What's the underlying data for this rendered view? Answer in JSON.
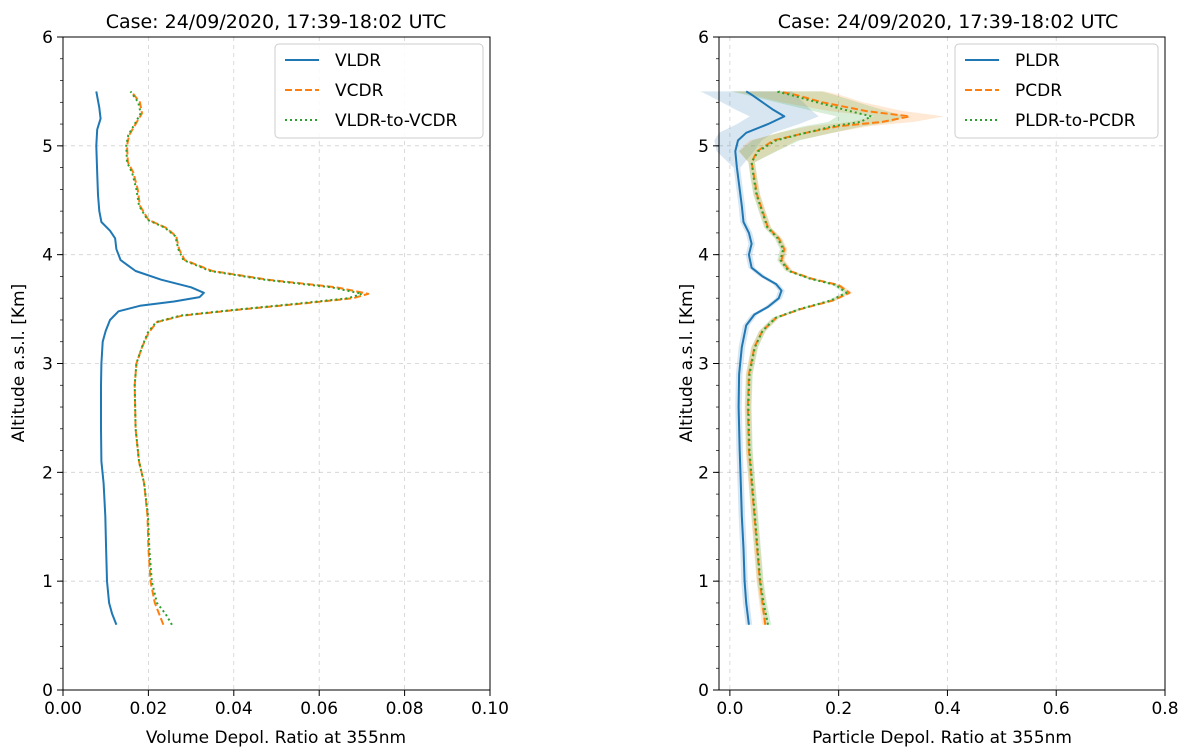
{
  "figure": {
    "background": "#ffffff"
  },
  "chart_data": [
    {
      "type": "line",
      "title": "Case: 24/09/2020, 17:39-18:02 UTC",
      "xlabel": "Volume Depol. Ratio at 355nm",
      "ylabel": "Altitude a.s.l. [Km]",
      "xlim": [
        0.0,
        0.1
      ],
      "ylim": [
        0,
        6
      ],
      "xticks": [
        0.0,
        0.02,
        0.04,
        0.06,
        0.08,
        0.1
      ],
      "xtick_labels": [
        "0.00",
        "0.02",
        "0.04",
        "0.06",
        "0.08",
        "0.10"
      ],
      "yticks": [
        0,
        1,
        2,
        3,
        4,
        5,
        6
      ],
      "ytick_labels": [
        "0",
        "1",
        "2",
        "3",
        "4",
        "5",
        "6"
      ],
      "grid": true,
      "legend_position": "top-right",
      "series": [
        {
          "name": "VLDR",
          "color": "#1f77b4",
          "style": "solid",
          "points": [
            [
              0.0125,
              0.6
            ],
            [
              0.0115,
              0.7
            ],
            [
              0.0108,
              0.8
            ],
            [
              0.0103,
              1.0
            ],
            [
              0.0101,
              1.3
            ],
            [
              0.0099,
              1.6
            ],
            [
              0.0095,
              1.9
            ],
            [
              0.009,
              2.1
            ],
            [
              0.0089,
              2.4
            ],
            [
              0.0089,
              2.8
            ],
            [
              0.009,
              3.0
            ],
            [
              0.0093,
              3.2
            ],
            [
              0.01,
              3.3
            ],
            [
              0.011,
              3.4
            ],
            [
              0.013,
              3.48
            ],
            [
              0.018,
              3.53
            ],
            [
              0.026,
              3.57
            ],
            [
              0.032,
              3.61
            ],
            [
              0.033,
              3.65
            ],
            [
              0.03,
              3.7
            ],
            [
              0.023,
              3.77
            ],
            [
              0.017,
              3.85
            ],
            [
              0.0135,
              3.95
            ],
            [
              0.0125,
              4.05
            ],
            [
              0.0122,
              4.15
            ],
            [
              0.011,
              4.22
            ],
            [
              0.009,
              4.3
            ],
            [
              0.0085,
              4.4
            ],
            [
              0.0082,
              4.55
            ],
            [
              0.008,
              4.75
            ],
            [
              0.0078,
              5.0
            ],
            [
              0.008,
              5.15
            ],
            [
              0.0088,
              5.25
            ],
            [
              0.0085,
              5.35
            ],
            [
              0.0078,
              5.5
            ]
          ]
        },
        {
          "name": "VCDR",
          "color": "#ff7f0e",
          "style": "dashed",
          "points": [
            [
              0.0235,
              0.6
            ],
            [
              0.0225,
              0.7
            ],
            [
              0.0215,
              0.8
            ],
            [
              0.0205,
              1.0
            ],
            [
              0.02,
              1.3
            ],
            [
              0.0198,
              1.6
            ],
            [
              0.019,
              1.9
            ],
            [
              0.0178,
              2.1
            ],
            [
              0.017,
              2.4
            ],
            [
              0.0168,
              2.8
            ],
            [
              0.0172,
              3.0
            ],
            [
              0.0185,
              3.15
            ],
            [
              0.02,
              3.28
            ],
            [
              0.022,
              3.38
            ],
            [
              0.028,
              3.44
            ],
            [
              0.04,
              3.49
            ],
            [
              0.056,
              3.55
            ],
            [
              0.068,
              3.6
            ],
            [
              0.0715,
              3.64
            ],
            [
              0.064,
              3.7
            ],
            [
              0.048,
              3.77
            ],
            [
              0.035,
              3.85
            ],
            [
              0.0285,
              3.95
            ],
            [
              0.0272,
              4.05
            ],
            [
              0.0265,
              4.17
            ],
            [
              0.024,
              4.25
            ],
            [
              0.02,
              4.32
            ],
            [
              0.018,
              4.45
            ],
            [
              0.0175,
              4.6
            ],
            [
              0.0165,
              4.75
            ],
            [
              0.0152,
              4.85
            ],
            [
              0.015,
              5.0
            ],
            [
              0.0155,
              5.1
            ],
            [
              0.017,
              5.2
            ],
            [
              0.0185,
              5.3
            ],
            [
              0.018,
              5.4
            ],
            [
              0.016,
              5.5
            ]
          ]
        },
        {
          "name": "VLDR-to-VCDR",
          "color": "#2ca02c",
          "style": "dotted",
          "points": [
            [
              0.0255,
              0.6
            ],
            [
              0.024,
              0.7
            ],
            [
              0.022,
              0.8
            ],
            [
              0.0208,
              1.0
            ],
            [
              0.0202,
              1.3
            ],
            [
              0.0199,
              1.6
            ],
            [
              0.019,
              1.9
            ],
            [
              0.0178,
              2.1
            ],
            [
              0.017,
              2.4
            ],
            [
              0.0168,
              2.8
            ],
            [
              0.0172,
              3.0
            ],
            [
              0.0185,
              3.15
            ],
            [
              0.0198,
              3.28
            ],
            [
              0.0218,
              3.38
            ],
            [
              0.0275,
              3.44
            ],
            [
              0.0392,
              3.49
            ],
            [
              0.055,
              3.55
            ],
            [
              0.0668,
              3.6
            ],
            [
              0.07,
              3.64
            ],
            [
              0.0628,
              3.7
            ],
            [
              0.0472,
              3.77
            ],
            [
              0.0345,
              3.85
            ],
            [
              0.0282,
              3.95
            ],
            [
              0.027,
              4.05
            ],
            [
              0.0263,
              4.17
            ],
            [
              0.0238,
              4.25
            ],
            [
              0.0198,
              4.32
            ],
            [
              0.0178,
              4.45
            ],
            [
              0.0172,
              4.6
            ],
            [
              0.0162,
              4.75
            ],
            [
              0.015,
              4.85
            ],
            [
              0.0148,
              5.0
            ],
            [
              0.0153,
              5.1
            ],
            [
              0.0168,
              5.2
            ],
            [
              0.0182,
              5.3
            ],
            [
              0.0176,
              5.4
            ],
            [
              0.0158,
              5.5
            ]
          ]
        }
      ]
    },
    {
      "type": "line",
      "title": "Case: 24/09/2020, 17:39-18:02 UTC",
      "xlabel": "Particle Depol. Ratio at 355nm",
      "ylabel": "Altitude a.s.l. [Km]",
      "xlim": [
        -0.02,
        0.8
      ],
      "ylim": [
        0,
        6
      ],
      "xticks": [
        0.0,
        0.2,
        0.4,
        0.6,
        0.8
      ],
      "xtick_labels": [
        "0.0",
        "0.2",
        "0.4",
        "0.6",
        "0.8"
      ],
      "yticks": [
        0,
        1,
        2,
        3,
        4,
        5,
        6
      ],
      "ytick_labels": [
        "0",
        "1",
        "2",
        "3",
        "4",
        "5",
        "6"
      ],
      "grid": true,
      "legend_position": "top-right",
      "series": [
        {
          "name": "PLDR",
          "color": "#1f77b4",
          "style": "solid",
          "points": [
            [
              0.035,
              0.6
            ],
            [
              0.03,
              0.8
            ],
            [
              0.027,
              1.0
            ],
            [
              0.025,
              1.3
            ],
            [
              0.022,
              1.6
            ],
            [
              0.02,
              1.9
            ],
            [
              0.018,
              2.2
            ],
            [
              0.016,
              2.6
            ],
            [
              0.017,
              2.9
            ],
            [
              0.022,
              3.15
            ],
            [
              0.03,
              3.35
            ],
            [
              0.045,
              3.45
            ],
            [
              0.07,
              3.52
            ],
            [
              0.09,
              3.6
            ],
            [
              0.095,
              3.67
            ],
            [
              0.085,
              3.73
            ],
            [
              0.06,
              3.8
            ],
            [
              0.04,
              3.88
            ],
            [
              0.035,
              4.0
            ],
            [
              0.04,
              4.1
            ],
            [
              0.035,
              4.2
            ],
            [
              0.025,
              4.3
            ],
            [
              0.022,
              4.45
            ],
            [
              0.018,
              4.6
            ],
            [
              0.013,
              4.8
            ],
            [
              0.01,
              4.95
            ],
            [
              0.015,
              5.05
            ],
            [
              0.03,
              5.12
            ],
            [
              0.07,
              5.2
            ],
            [
              0.1,
              5.27
            ],
            [
              0.08,
              5.33
            ],
            [
              0.06,
              5.4
            ],
            [
              0.04,
              5.47
            ],
            [
              0.03,
              5.5
            ]
          ]
        },
        {
          "name": "PCDR",
          "color": "#ff7f0e",
          "style": "dashed",
          "points": [
            [
              0.065,
              0.6
            ],
            [
              0.06,
              0.8
            ],
            [
              0.055,
              1.0
            ],
            [
              0.05,
              1.3
            ],
            [
              0.045,
              1.6
            ],
            [
              0.04,
              1.9
            ],
            [
              0.035,
              2.2
            ],
            [
              0.033,
              2.6
            ],
            [
              0.035,
              2.9
            ],
            [
              0.045,
              3.15
            ],
            [
              0.06,
              3.3
            ],
            [
              0.085,
              3.42
            ],
            [
              0.13,
              3.5
            ],
            [
              0.19,
              3.58
            ],
            [
              0.22,
              3.65
            ],
            [
              0.2,
              3.72
            ],
            [
              0.15,
              3.78
            ],
            [
              0.11,
              3.85
            ],
            [
              0.095,
              3.95
            ],
            [
              0.1,
              4.05
            ],
            [
              0.09,
              4.15
            ],
            [
              0.07,
              4.25
            ],
            [
              0.06,
              4.4
            ],
            [
              0.05,
              4.55
            ],
            [
              0.045,
              4.7
            ],
            [
              0.04,
              4.85
            ],
            [
              0.05,
              4.95
            ],
            [
              0.08,
              5.05
            ],
            [
              0.14,
              5.12
            ],
            [
              0.2,
              5.18
            ],
            [
              0.28,
              5.22
            ],
            [
              0.33,
              5.27
            ],
            [
              0.25,
              5.32
            ],
            [
              0.17,
              5.4
            ],
            [
              0.12,
              5.47
            ],
            [
              0.09,
              5.5
            ]
          ]
        },
        {
          "name": "PLDR-to-PCDR",
          "color": "#2ca02c",
          "style": "dotted",
          "points": [
            [
              0.07,
              0.6
            ],
            [
              0.062,
              0.8
            ],
            [
              0.056,
              1.0
            ],
            [
              0.051,
              1.3
            ],
            [
              0.046,
              1.6
            ],
            [
              0.041,
              1.9
            ],
            [
              0.036,
              2.2
            ],
            [
              0.034,
              2.6
            ],
            [
              0.036,
              2.9
            ],
            [
              0.046,
              3.15
            ],
            [
              0.06,
              3.3
            ],
            [
              0.084,
              3.42
            ],
            [
              0.128,
              3.5
            ],
            [
              0.186,
              3.58
            ],
            [
              0.214,
              3.65
            ],
            [
              0.195,
              3.72
            ],
            [
              0.147,
              3.78
            ],
            [
              0.108,
              3.85
            ],
            [
              0.093,
              3.95
            ],
            [
              0.098,
              4.05
            ],
            [
              0.088,
              4.15
            ],
            [
              0.069,
              4.25
            ],
            [
              0.059,
              4.4
            ],
            [
              0.049,
              4.55
            ],
            [
              0.044,
              4.7
            ],
            [
              0.04,
              4.85
            ],
            [
              0.052,
              4.95
            ],
            [
              0.085,
              5.05
            ],
            [
              0.14,
              5.12
            ],
            [
              0.19,
              5.18
            ],
            [
              0.24,
              5.22
            ],
            [
              0.26,
              5.27
            ],
            [
              0.22,
              5.32
            ],
            [
              0.16,
              5.4
            ],
            [
              0.11,
              5.47
            ],
            [
              0.085,
              5.5
            ]
          ]
        }
      ]
    }
  ]
}
